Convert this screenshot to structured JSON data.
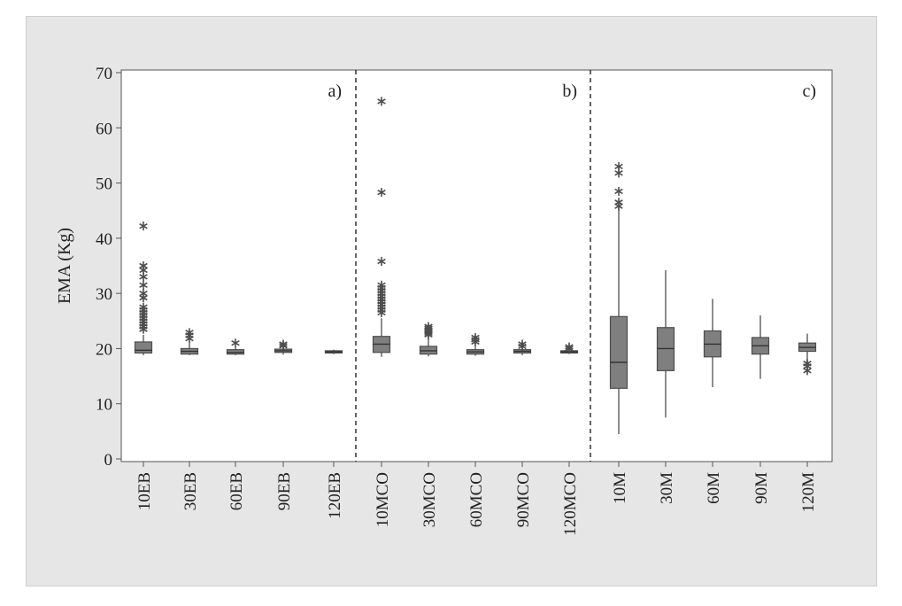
{
  "chart_data": {
    "type": "box",
    "title": "",
    "ylabel": "EMA (Kg)",
    "xlabel": "",
    "ylim": [
      0,
      70
    ],
    "yticks": [
      0,
      10,
      20,
      30,
      40,
      50,
      60,
      70
    ],
    "grid": false,
    "panel_labels": [
      "a)",
      "b)",
      "c)"
    ],
    "categories": [
      "10EB",
      "30EB",
      "60EB",
      "90EB",
      "120EB",
      "10MCO",
      "30MCO",
      "60MCO",
      "90MCO",
      "120MCO",
      "10M",
      "30M",
      "60M",
      "90M",
      "120M"
    ],
    "boxes": [
      {
        "label": "10EB",
        "min": 18.8,
        "q1": 19.2,
        "median": 19.7,
        "q3": 21.2,
        "max": 22.5,
        "outliers": [
          42.2,
          35.0,
          34.2,
          33.0,
          31.5,
          30.0,
          29.2,
          27.5,
          27.0,
          26.5,
          26.0,
          25.5,
          25.0,
          24.5,
          24.0,
          23.5
        ]
      },
      {
        "label": "30EB",
        "min": 18.8,
        "q1": 19.0,
        "median": 19.5,
        "q3": 20.0,
        "max": 21.0,
        "outliers": [
          22.9,
          22.4,
          21.8
        ]
      },
      {
        "label": "60EB",
        "min": 18.8,
        "q1": 19.0,
        "median": 19.3,
        "q3": 19.8,
        "max": 20.2,
        "outliers": [
          21.0
        ]
      },
      {
        "label": "90EB",
        "min": 18.9,
        "q1": 19.3,
        "median": 19.6,
        "q3": 19.9,
        "max": 20.2,
        "outliers": [
          20.8,
          20.5
        ]
      },
      {
        "label": "120EB",
        "min": 19.0,
        "q1": 19.2,
        "median": 19.4,
        "q3": 19.6,
        "max": 19.8,
        "outliers": []
      },
      {
        "label": "10MCO",
        "min": 18.5,
        "q1": 19.3,
        "median": 20.8,
        "q3": 22.2,
        "max": 25.5,
        "outliers": [
          64.8,
          48.3,
          35.8,
          31.5,
          31.0,
          30.5,
          30.0,
          29.5,
          29.0,
          28.5,
          28.0,
          27.5,
          27.0,
          26.5
        ]
      },
      {
        "label": "30MCO",
        "min": 18.6,
        "q1": 19.0,
        "median": 19.6,
        "q3": 20.4,
        "max": 21.8,
        "outliers": [
          24.0,
          23.7,
          23.4,
          23.1,
          22.8,
          22.5
        ]
      },
      {
        "label": "60MCO",
        "min": 18.7,
        "q1": 19.0,
        "median": 19.4,
        "q3": 19.8,
        "max": 20.5,
        "outliers": [
          22.0,
          21.6,
          21.2
        ]
      },
      {
        "label": "90MCO",
        "min": 18.8,
        "q1": 19.2,
        "median": 19.5,
        "q3": 19.8,
        "max": 20.2,
        "outliers": [
          20.8,
          20.4
        ]
      },
      {
        "label": "120MCO",
        "min": 19.0,
        "q1": 19.2,
        "median": 19.4,
        "q3": 19.6,
        "max": 19.8,
        "outliers": [
          20.3,
          20.0
        ]
      },
      {
        "label": "10M",
        "min": 4.5,
        "q1": 12.8,
        "median": 17.5,
        "q3": 25.8,
        "max": 45.5,
        "outliers": [
          53.0,
          51.8,
          48.5,
          46.5,
          45.8
        ]
      },
      {
        "label": "30M",
        "min": 7.5,
        "q1": 16.0,
        "median": 20.0,
        "q3": 23.8,
        "max": 34.2,
        "outliers": []
      },
      {
        "label": "60M",
        "min": 13.0,
        "q1": 18.5,
        "median": 20.8,
        "q3": 23.2,
        "max": 29.0,
        "outliers": []
      },
      {
        "label": "90M",
        "min": 14.5,
        "q1": 19.0,
        "median": 20.5,
        "q3": 22.0,
        "max": 26.0,
        "outliers": []
      },
      {
        "label": "120M",
        "min": 17.5,
        "q1": 19.5,
        "median": 20.2,
        "q3": 21.0,
        "max": 22.7,
        "outliers": [
          17.3,
          16.8,
          16.0
        ]
      }
    ],
    "colors": {
      "box_fill": "#7f7f7f",
      "box_stroke": "#4d4d4d",
      "whisker": "#4d4d4d",
      "outlier": "#4d4d4d",
      "divider": "#222222",
      "frame_bg": "#e6e6e6",
      "plot_bg": "#ffffff"
    }
  }
}
